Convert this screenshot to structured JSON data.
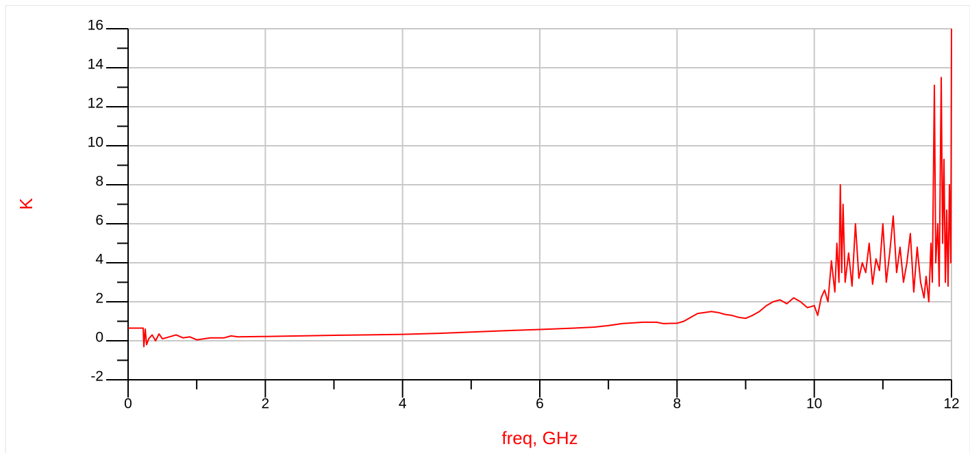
{
  "chart_data": {
    "type": "line",
    "xlabel": "freq, GHz",
    "ylabel": "K",
    "color": "#ff0000",
    "x": [
      0,
      0.2,
      0.22,
      0.23,
      0.25,
      0.27,
      0.3,
      0.35,
      0.4,
      0.45,
      0.5,
      0.6,
      0.7,
      0.8,
      0.9,
      1.0,
      1.2,
      1.4,
      1.5,
      1.6,
      2,
      2.5,
      3,
      3.5,
      4,
      4.5,
      5,
      5.5,
      6,
      6.5,
      6.8,
      7,
      7.2,
      7.5,
      7.7,
      7.8,
      8.0,
      8.1,
      8.2,
      8.3,
      8.4,
      8.5,
      8.6,
      8.7,
      8.8,
      8.9,
      9.0,
      9.1,
      9.2,
      9.3,
      9.4,
      9.5,
      9.6,
      9.7,
      9.8,
      9.9,
      10.0,
      10.05,
      10.1,
      10.15,
      10.2,
      10.25,
      10.3,
      10.33,
      10.36,
      10.38,
      10.4,
      10.42,
      10.45,
      10.5,
      10.55,
      10.6,
      10.65,
      10.7,
      10.75,
      10.8,
      10.85,
      10.9,
      10.95,
      11.0,
      11.05,
      11.1,
      11.15,
      11.2,
      11.25,
      11.3,
      11.35,
      11.4,
      11.45,
      11.5,
      11.55,
      11.6,
      11.63,
      11.67,
      11.7,
      11.72,
      11.75,
      11.77,
      11.8,
      11.82,
      11.85,
      11.87,
      11.89,
      11.91,
      11.93,
      11.95,
      11.97,
      11.99,
      12.0
    ],
    "values": [
      0.65,
      0.65,
      0.65,
      -0.3,
      0.6,
      -0.2,
      0.1,
      0.3,
      0.0,
      0.35,
      0.1,
      0.2,
      0.3,
      0.15,
      0.2,
      0.05,
      0.15,
      0.15,
      0.25,
      0.2,
      0.22,
      0.25,
      0.28,
      0.3,
      0.33,
      0.38,
      0.45,
      0.52,
      0.58,
      0.65,
      0.7,
      0.78,
      0.88,
      0.95,
      0.95,
      0.88,
      0.9,
      1.0,
      1.2,
      1.4,
      1.45,
      1.5,
      1.45,
      1.35,
      1.3,
      1.2,
      1.15,
      1.3,
      1.5,
      1.8,
      2.0,
      2.1,
      1.9,
      2.2,
      2.0,
      1.7,
      1.8,
      1.3,
      2.2,
      2.6,
      2.0,
      4.1,
      2.5,
      5.0,
      3.0,
      8.0,
      3.5,
      7.0,
      3.0,
      4.5,
      2.8,
      6.0,
      3.2,
      4.0,
      3.5,
      5.0,
      2.9,
      4.2,
      3.6,
      6.0,
      3.0,
      4.5,
      6.4,
      3.5,
      4.8,
      3.0,
      4.0,
      5.5,
      2.5,
      4.8,
      3.0,
      2.2,
      3.3,
      2.0,
      5.0,
      3.0,
      13.1,
      4.0,
      6.0,
      2.8,
      13.5,
      5.0,
      9.3,
      3.0,
      6.7,
      2.8,
      8.0,
      4.0,
      16
    ],
    "xlim": [
      0,
      12
    ],
    "xticks": [
      0,
      2,
      4,
      6,
      8,
      10,
      12
    ],
    "xminorticks": [
      1,
      3,
      5,
      7,
      9,
      11
    ],
    "ylim": [
      -2,
      16
    ],
    "yticks": [
      -2,
      0,
      2,
      4,
      6,
      8,
      10,
      12,
      14,
      16
    ],
    "yminorticks": [
      -1,
      1,
      3,
      5,
      7,
      9,
      11,
      13,
      15
    ],
    "grid": true
  }
}
